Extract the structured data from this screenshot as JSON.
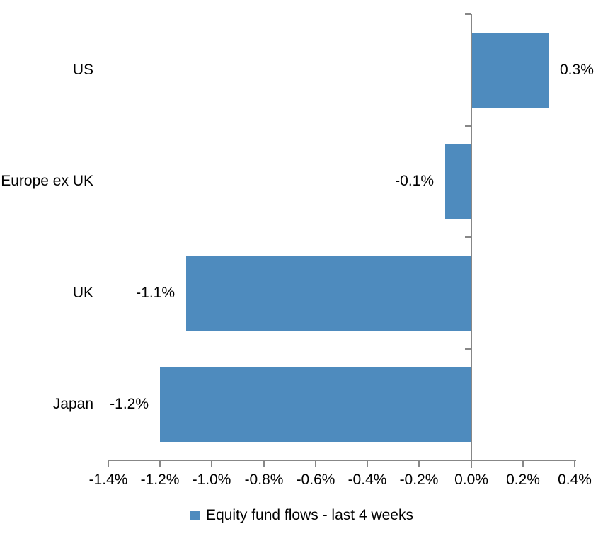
{
  "chart_data": {
    "type": "bar",
    "orientation": "horizontal",
    "title": "",
    "xlabel": "",
    "ylabel": "",
    "categories": [
      "US",
      "Europe ex UK",
      "UK",
      "Japan"
    ],
    "values": [
      0.3,
      -0.1,
      -1.1,
      -1.2
    ],
    "value_labels": [
      "0.3%",
      "-0.1%",
      "-1.1%",
      "-1.2%"
    ],
    "x_tick_labels": [
      "-1.4%",
      "-1.2%",
      "-1.0%",
      "-0.8%",
      "-0.6%",
      "-0.4%",
      "-0.2%",
      "0.0%",
      "0.2%",
      "0.4%"
    ],
    "x_tick_values": [
      -1.4,
      -1.2,
      -1.0,
      -0.8,
      -0.6,
      -0.4,
      -0.2,
      0.0,
      0.2,
      0.4
    ],
    "xlim": [
      -1.4,
      0.4
    ],
    "grid": false,
    "legend_position": "bottom",
    "legend_label": "Equity fund flows - last 4 weeks",
    "colors": {
      "bar": "#4E8BBE",
      "axis": "#878787",
      "text": "#000000",
      "background": "#FFFFFF"
    }
  }
}
